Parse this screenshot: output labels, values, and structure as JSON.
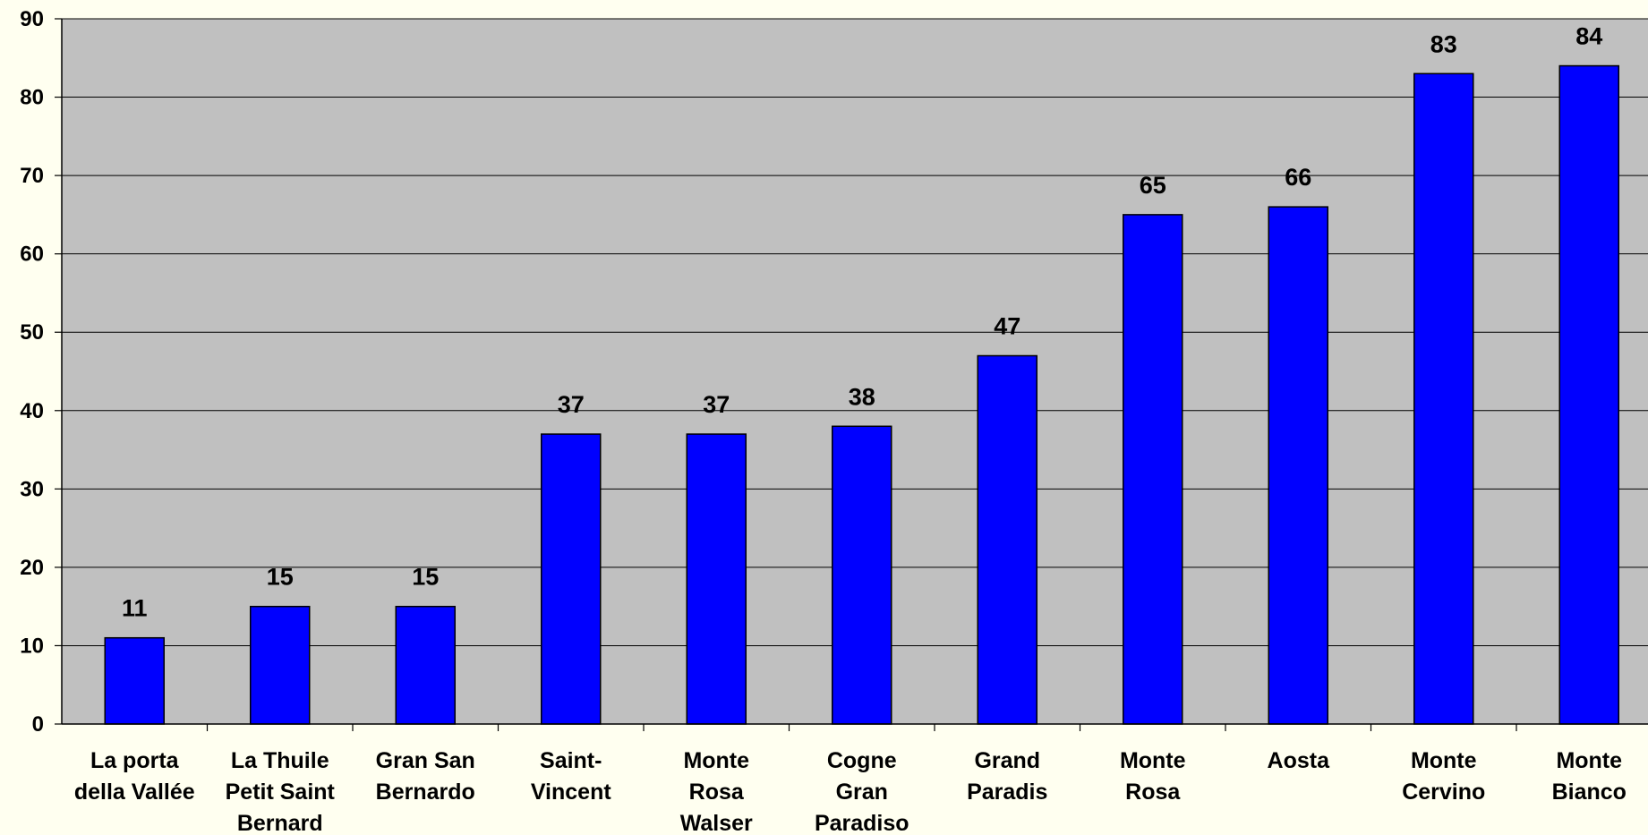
{
  "chart_data": {
    "type": "bar",
    "categories": [
      [
        "La porta",
        "della Vallée"
      ],
      [
        "La Thuile",
        "Petit Saint",
        "Bernard"
      ],
      [
        "Gran San",
        "Bernardo"
      ],
      [
        "Saint-",
        "Vincent"
      ],
      [
        "Monte",
        "Rosa",
        "Walser"
      ],
      [
        "Cogne",
        "Gran",
        "Paradiso"
      ],
      [
        "Grand",
        "Paradis"
      ],
      [
        "Monte",
        "Rosa"
      ],
      [
        "Aosta"
      ],
      [
        "Monte",
        "Cervino"
      ],
      [
        "Monte",
        "Bianco"
      ]
    ],
    "values": [
      11,
      15,
      15,
      37,
      37,
      38,
      47,
      65,
      66,
      83,
      84
    ],
    "ylim": [
      0,
      90
    ],
    "yticks": [
      0,
      10,
      20,
      30,
      40,
      50,
      60,
      70,
      80,
      90
    ],
    "grid": true,
    "colors": {
      "bar": "#0000ff",
      "bar_border": "#000000",
      "plot_background": "#c0c0c0",
      "page_background": "#fffff0"
    }
  }
}
